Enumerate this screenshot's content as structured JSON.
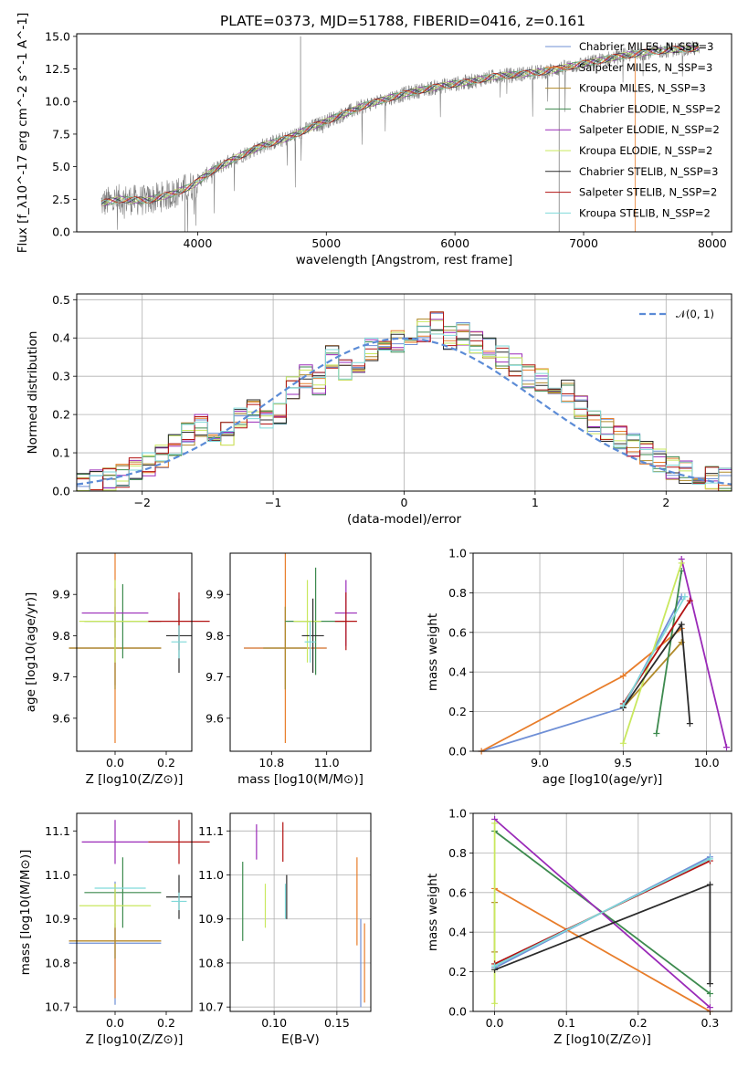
{
  "colors": [
    "#6f8fd6",
    "#e87d2a",
    "#b08a2a",
    "#3d8a4e",
    "#9a2ab8",
    "#c9e85e",
    "#2b2b2b",
    "#b21212",
    "#7fd9d9"
  ],
  "chart_data": [
    {
      "type": "line",
      "title": "PLATE=0373, MJD=51788, FIBERID=0416, z=0.161",
      "xlabel": "wavelength [Angstrom, rest frame]",
      "ylabel": "Flux [f_λ10^-17 erg cm^-2 s^-1 A^-1]",
      "xlim": [
        3060,
        8150
      ],
      "ylim": [
        0,
        15.2
      ],
      "xticks": [
        4000,
        5000,
        6000,
        7000,
        8000
      ],
      "yticks": [
        0,
        2.5,
        5.0,
        7.5,
        10.0,
        12.5,
        15.0
      ],
      "ytick_labels": [
        "0.0",
        "2.5",
        "5.0",
        "7.5",
        "10.0",
        "12.5",
        "15.0"
      ],
      "legend_position": "top-right",
      "continuum": {
        "x": [
          3250,
          3400,
          3600,
          3800,
          3950,
          4100,
          4300,
          4500,
          4700,
          4900,
          5100,
          5300,
          5500,
          5700,
          5900,
          6100,
          6300,
          6500,
          6700,
          6900,
          7100,
          7300,
          7500,
          7700,
          7900
        ],
        "y": [
          2.2,
          2.5,
          2.4,
          2.9,
          3.5,
          4.6,
          5.7,
          6.6,
          7.2,
          8.1,
          8.9,
          9.7,
          10.3,
          10.8,
          11.2,
          11.5,
          11.9,
          12.1,
          12.3,
          12.7,
          13.1,
          13.5,
          13.8,
          14.0,
          14.1
        ]
      },
      "series": [
        {
          "name": "Chabrier MILES, N_SSP=3"
        },
        {
          "name": "Salpeter MILES, N_SSP=3"
        },
        {
          "name": "Kroupa MILES, N_SSP=3"
        },
        {
          "name": "Chabrier ELODIE, N_SSP=2"
        },
        {
          "name": "Salpeter ELODIE, N_SSP=2"
        },
        {
          "name": "Kroupa ELODIE, N_SSP=2"
        },
        {
          "name": "Chabrier STELIB, N_SSP=3"
        },
        {
          "name": "Salpeter STELIB, N_SSP=2"
        },
        {
          "name": "Kroupa STELIB, N_SSP=2"
        }
      ]
    },
    {
      "type": "histogram",
      "xlabel": "(data-model)/error",
      "ylabel": "Normed distribution",
      "xlim": [
        -2.5,
        2.5
      ],
      "ylim": [
        0,
        0.515
      ],
      "xticks": [
        -2,
        -1,
        0,
        1,
        2
      ],
      "xtick_labels": [
        "−2",
        "−1",
        "0",
        "1",
        "2"
      ],
      "yticks": [
        0,
        0.1,
        0.2,
        0.3,
        0.4,
        0.5
      ],
      "ytick_labels": [
        "0.0",
        "0.1",
        "0.2",
        "0.3",
        "0.4",
        "0.5"
      ],
      "grid": true,
      "legend": "𝒩(0, 1)",
      "legend_position": "top-right",
      "bin_edges_start": -2.5,
      "bin_width": 0.1,
      "base_hist": [
        0.02,
        0.025,
        0.03,
        0.04,
        0.06,
        0.07,
        0.09,
        0.12,
        0.15,
        0.17,
        0.16,
        0.15,
        0.19,
        0.21,
        0.18,
        0.2,
        0.27,
        0.3,
        0.28,
        0.35,
        0.32,
        0.34,
        0.37,
        0.38,
        0.39,
        0.37,
        0.42,
        0.44,
        0.4,
        0.41,
        0.39,
        0.37,
        0.35,
        0.33,
        0.3,
        0.29,
        0.25,
        0.26,
        0.22,
        0.18,
        0.16,
        0.14,
        0.12,
        0.1,
        0.08,
        0.06,
        0.05,
        0.04,
        0.035,
        0.03
      ]
    },
    {
      "type": "scatter",
      "xlabel": "Z [log10(Z/Z⊙)]",
      "ylabel": "age  [log10(age/yr)]",
      "xlim": [
        -0.15,
        0.3
      ],
      "ylim": [
        9.52,
        10.0
      ],
      "xticks": [
        0.0,
        0.2
      ],
      "xtick_labels": [
        "0.0",
        "0.2"
      ],
      "yticks": [
        9.6,
        9.7,
        9.8,
        9.9
      ],
      "ytick_labels": [
        "9.6",
        "9.7",
        "9.8",
        "9.9"
      ],
      "points": [
        {
          "x": 0.0,
          "y": 9.77,
          "xerr": 0.18,
          "yerr": 0.09,
          "c": 0
        },
        {
          "x": 0.0,
          "y": 9.77,
          "xerr": 0.18,
          "yerr": 0.23,
          "c": 1
        },
        {
          "x": 0.0,
          "y": 9.77,
          "xerr": 0.18,
          "yerr": 0.1,
          "c": 2
        },
        {
          "x": 0.03,
          "y": 9.835,
          "xerr": 0.15,
          "yerr": 0.09,
          "c": 3
        },
        {
          "x": 0.0,
          "y": 9.855,
          "xerr": 0.13,
          "yerr": 0.06,
          "c": 4
        },
        {
          "x": 0.0,
          "y": 9.835,
          "xerr": 0.14,
          "yerr": 0.1,
          "c": 5
        },
        {
          "x": 0.25,
          "y": 9.8,
          "xerr": 0.05,
          "yerr": 0.09,
          "c": 6
        },
        {
          "x": 0.25,
          "y": 9.835,
          "xerr": 0.12,
          "yerr": 0.07,
          "c": 7
        },
        {
          "x": 0.25,
          "y": 9.785,
          "xerr": 0.03,
          "yerr": 0.04,
          "c": 8
        }
      ]
    },
    {
      "type": "scatter",
      "xlabel": "mass [log10(M/M⊙)]",
      "ylabel": "",
      "xlim": [
        10.65,
        11.16
      ],
      "ylim": [
        9.52,
        10.0
      ],
      "xticks": [
        10.8,
        11.0
      ],
      "xtick_labels": [
        "10.8",
        "11.0"
      ],
      "yticks": [
        9.6,
        9.7,
        9.8,
        9.9
      ],
      "ytick_labels": [
        "9.6",
        "9.7",
        "9.8",
        "9.9"
      ],
      "points": [
        {
          "x": 10.85,
          "y": 9.77,
          "xerr": 0.15,
          "yerr": 0.1,
          "c": 0
        },
        {
          "x": 10.85,
          "y": 9.77,
          "xerr": 0.15,
          "yerr": 0.23,
          "c": 1
        },
        {
          "x": 10.85,
          "y": 9.77,
          "xerr": 0.08,
          "yerr": 0.1,
          "c": 2
        },
        {
          "x": 10.96,
          "y": 9.835,
          "xerr": 0.11,
          "yerr": 0.13,
          "c": 3
        },
        {
          "x": 11.07,
          "y": 9.855,
          "xerr": 0.04,
          "yerr": 0.08,
          "c": 4
        },
        {
          "x": 10.93,
          "y": 9.835,
          "xerr": 0.05,
          "yerr": 0.1,
          "c": 5
        },
        {
          "x": 10.95,
          "y": 9.8,
          "xerr": 0.04,
          "yerr": 0.09,
          "c": 6
        },
        {
          "x": 11.07,
          "y": 9.835,
          "xerr": 0.04,
          "yerr": 0.07,
          "c": 7
        },
        {
          "x": 10.94,
          "y": 9.785,
          "xerr": 0.02,
          "yerr": 0.05,
          "c": 8
        }
      ]
    },
    {
      "type": "line",
      "xlabel": "age  [log10(age/yr)]",
      "ylabel": "mass weight",
      "xlim": [
        8.6,
        10.15
      ],
      "ylim": [
        0,
        1.0
      ],
      "xticks": [
        9.0,
        9.5,
        10.0
      ],
      "xtick_labels": [
        "9.0",
        "9.5",
        "10.0"
      ],
      "yticks": [
        0,
        0.2,
        0.4,
        0.6,
        0.8,
        1.0
      ],
      "ytick_labels": [
        "0.0",
        "0.2",
        "0.4",
        "0.6",
        "0.8",
        "1.0"
      ],
      "grid": true,
      "lines": [
        {
          "c": 0,
          "x": [
            8.65,
            9.5,
            9.85
          ],
          "y": [
            0.0,
            0.22,
            0.78
          ]
        },
        {
          "c": 1,
          "x": [
            8.65,
            9.5,
            9.85
          ],
          "y": [
            0.0,
            0.38,
            0.62
          ]
        },
        {
          "c": 2,
          "x": [
            9.5,
            9.85
          ],
          "y": [
            0.22,
            0.55
          ]
        },
        {
          "c": 3,
          "x": [
            9.7,
            9.85
          ],
          "y": [
            0.09,
            0.91
          ]
        },
        {
          "c": 4,
          "x": [
            9.85,
            10.12
          ],
          "y": [
            0.97,
            0.02
          ]
        },
        {
          "c": 5,
          "x": [
            9.5,
            9.85
          ],
          "y": [
            0.04,
            0.95
          ]
        },
        {
          "c": 6,
          "x": [
            9.5,
            9.85,
            9.9
          ],
          "y": [
            0.22,
            0.64,
            0.14
          ]
        },
        {
          "c": 7,
          "x": [
            9.5,
            9.9
          ],
          "y": [
            0.24,
            0.76
          ]
        },
        {
          "c": 8,
          "x": [
            9.5,
            9.87
          ],
          "y": [
            0.23,
            0.78
          ]
        }
      ]
    },
    {
      "type": "scatter",
      "xlabel": "Z [log10(Z/Z⊙)]",
      "ylabel": "mass [log10(M/M⊙)]",
      "xlim": [
        -0.15,
        0.3
      ],
      "ylim": [
        10.69,
        11.14
      ],
      "xticks": [
        0.0,
        0.2
      ],
      "xtick_labels": [
        "0.0",
        "0.2"
      ],
      "yticks": [
        10.7,
        10.8,
        10.9,
        11.0,
        11.1
      ],
      "ytick_labels": [
        "10.7",
        "10.8",
        "10.9",
        "11.0",
        "11.1"
      ],
      "points": [
        {
          "x": 0.0,
          "y": 10.845,
          "xerr": 0.18,
          "yerr": 0.14,
          "c": 0
        },
        {
          "x": 0.0,
          "y": 10.85,
          "xerr": 0.18,
          "yerr": 0.13,
          "c": 1
        },
        {
          "x": 0.0,
          "y": 10.85,
          "xerr": 0.18,
          "yerr": 0.04,
          "c": 2
        },
        {
          "x": 0.03,
          "y": 10.96,
          "xerr": 0.15,
          "yerr": 0.08,
          "c": 3
        },
        {
          "x": 0.0,
          "y": 11.075,
          "xerr": 0.13,
          "yerr": 0.05,
          "c": 4
        },
        {
          "x": 0.0,
          "y": 10.93,
          "xerr": 0.14,
          "yerr": 0.05,
          "c": 5
        },
        {
          "x": 0.25,
          "y": 10.95,
          "xerr": 0.05,
          "yerr": 0.05,
          "c": 6
        },
        {
          "x": 0.25,
          "y": 11.075,
          "xerr": 0.12,
          "yerr": 0.05,
          "c": 7
        },
        {
          "x": 0.25,
          "y": 10.94,
          "xerr": 0.03,
          "yerr": 0.02,
          "c": 8
        },
        {
          "x": 0.02,
          "y": 10.97,
          "xerr": 0.1,
          "yerr": 0.0,
          "c": 8
        }
      ]
    },
    {
      "type": "errorbar",
      "xlabel": "E(B-V)",
      "ylabel": "",
      "xlim": [
        0.065,
        0.177
      ],
      "ylim": [
        10.69,
        11.14
      ],
      "xticks": [
        0.1,
        0.15
      ],
      "xtick_labels": [
        "0.10",
        "0.15"
      ],
      "yticks": [
        10.7,
        10.8,
        10.9,
        11.0,
        11.1
      ],
      "ytick_labels": [
        "10.7",
        "10.8",
        "10.9",
        "11.0",
        "11.1"
      ],
      "grid": true,
      "points": [
        {
          "x": 0.169,
          "y": 10.8,
          "yerr": 0.1,
          "c": 0
        },
        {
          "x": 0.172,
          "y": 10.8,
          "yerr": 0.09,
          "c": 1
        },
        {
          "x": 0.075,
          "y": 10.94,
          "yerr": 0.09,
          "c": 3
        },
        {
          "x": 0.086,
          "y": 11.075,
          "yerr": 0.04,
          "c": 4
        },
        {
          "x": 0.093,
          "y": 10.93,
          "yerr": 0.05,
          "c": 5
        },
        {
          "x": 0.11,
          "y": 10.95,
          "yerr": 0.05,
          "c": 6
        },
        {
          "x": 0.107,
          "y": 11.075,
          "yerr": 0.045,
          "c": 7
        },
        {
          "x": 0.109,
          "y": 10.94,
          "yerr": 0.04,
          "c": 8
        },
        {
          "x": 0.166,
          "y": 10.94,
          "yerr": 0.1,
          "c": 1
        }
      ]
    },
    {
      "type": "line",
      "xlabel": "Z [log10(Z/Z⊙)]",
      "ylabel": "mass weight",
      "xlim": [
        -0.03,
        0.33
      ],
      "ylim": [
        0,
        1.0
      ],
      "xticks": [
        0.0,
        0.1,
        0.2,
        0.3
      ],
      "xtick_labels": [
        "0.0",
        "0.1",
        "0.2",
        "0.3"
      ],
      "yticks": [
        0,
        0.2,
        0.4,
        0.6,
        0.8,
        1.0
      ],
      "ytick_labels": [
        "0.0",
        "0.2",
        "0.4",
        "0.6",
        "0.8",
        "1.0"
      ],
      "grid": true,
      "lines": [
        {
          "c": 0,
          "x": [
            0.0,
            0.3
          ],
          "y": [
            0.22,
            0.78
          ]
        },
        {
          "c": 1,
          "x": [
            0.0,
            0.3
          ],
          "y": [
            0.62,
            0.0
          ]
        },
        {
          "c": 2,
          "x": [
            0.0,
            0.0
          ],
          "y": [
            0.3,
            0.55
          ]
        },
        {
          "c": 3,
          "x": [
            0.0,
            0.3
          ],
          "y": [
            0.91,
            0.09
          ]
        },
        {
          "c": 4,
          "x": [
            0.0,
            0.3
          ],
          "y": [
            0.97,
            0.02
          ]
        },
        {
          "c": 5,
          "x": [
            0.0,
            0.0
          ],
          "y": [
            0.04,
            0.95
          ]
        },
        {
          "c": 6,
          "x": [
            0.0,
            0.3,
            0.3
          ],
          "y": [
            0.21,
            0.64,
            0.14
          ]
        },
        {
          "c": 7,
          "x": [
            0.0,
            0.3
          ],
          "y": [
            0.24,
            0.76
          ]
        },
        {
          "c": 8,
          "x": [
            0.0,
            0.3
          ],
          "y": [
            0.23,
            0.77
          ]
        }
      ]
    }
  ]
}
